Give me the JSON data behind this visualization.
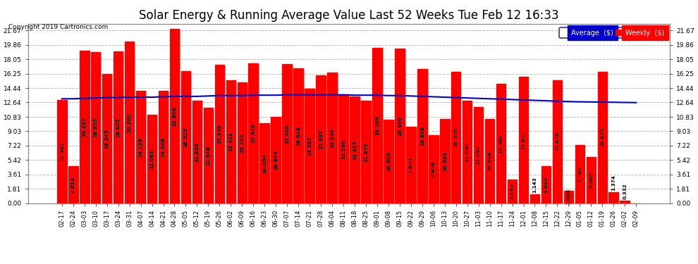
{
  "title": "Solar Energy & Running Average Value Last 52 Weeks Tue Feb 12 16:33",
  "copyright": "Copyright 2019 Cartronics.com",
  "categories": [
    "02-17",
    "02-24",
    "03-03",
    "03-10",
    "03-17",
    "03-24",
    "03-31",
    "04-07",
    "04-14",
    "04-21",
    "04-28",
    "05-05",
    "05-12",
    "05-19",
    "05-26",
    "06-02",
    "06-09",
    "06-16",
    "06-23",
    "06-30",
    "07-07",
    "07-14",
    "07-21",
    "07-28",
    "08-04",
    "08-11",
    "08-18",
    "08-25",
    "09-01",
    "09-08",
    "09-15",
    "09-22",
    "09-29",
    "10-06",
    "10-13",
    "10-20",
    "10-27",
    "11-03",
    "11-10",
    "11-17",
    "11-24",
    "12-01",
    "12-08",
    "12-15",
    "12-22",
    "12-29",
    "01-05",
    "01-12",
    "01-19",
    "01-26",
    "02-02",
    "02-09"
  ],
  "weekly_values": [
    12.942,
    4.614,
    19.137,
    18.955,
    16.245,
    19.045,
    20.305,
    14.128,
    11.081,
    14.068,
    21.866,
    16.525,
    12.839,
    11.948,
    17.349,
    15.432,
    15.161,
    17.54,
    10.054,
    10.844,
    17.409,
    16.926,
    14.397,
    15.997,
    16.346,
    13.55,
    13.367,
    12.873,
    19.509,
    10.505,
    19.409,
    9.603,
    16.836,
    8.496,
    10.584,
    16.505,
    12.83,
    12.092,
    10.584,
    15.005,
    2.992,
    15.831,
    1.143,
    4.645,
    15.438,
    1.608,
    7.302,
    5.805,
    16.475,
    1.374,
    0.332,
    0.0
  ],
  "average_values": [
    13.1,
    13.1,
    13.15,
    13.2,
    13.25,
    13.25,
    13.3,
    13.3,
    13.3,
    13.35,
    13.4,
    13.4,
    13.4,
    13.45,
    13.5,
    13.5,
    13.5,
    13.55,
    13.55,
    13.55,
    13.6,
    13.6,
    13.6,
    13.6,
    13.6,
    13.6,
    13.55,
    13.55,
    13.55,
    13.5,
    13.5,
    13.45,
    13.4,
    13.35,
    13.3,
    13.25,
    13.2,
    13.15,
    13.1,
    13.05,
    13.0,
    12.95,
    12.9,
    12.85,
    12.8,
    12.75,
    12.72,
    12.7,
    12.68,
    12.66,
    12.64,
    12.62
  ],
  "bar_color": "#FF0000",
  "line_color": "#0000CC",
  "background_color": "#FFFFFF",
  "grid_color": "#AAAAAA",
  "yticks": [
    0.0,
    1.81,
    3.61,
    5.42,
    7.22,
    9.03,
    10.83,
    12.64,
    14.44,
    16.25,
    18.05,
    19.86,
    21.67
  ],
  "ylim": [
    0,
    22.5
  ],
  "title_fontsize": 12,
  "label_fontsize": 6.0,
  "value_fontsize": 5.2
}
